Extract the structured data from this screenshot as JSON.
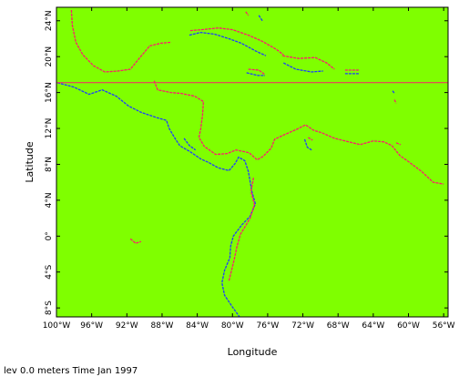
{
  "map": {
    "xlabel": "Longitude",
    "ylabel": "Latitude",
    "footer": "lev 0.0 meters Time Jan 1997",
    "colors": {
      "land_fill": "#7fff00",
      "coast_east": "#ff1a6e",
      "coast_west": "#1c3cff",
      "reference_line": "#ff1a6e",
      "frame": "#000000"
    },
    "xlim": [
      -100,
      -55.5
    ],
    "ylim": [
      -9,
      25.5
    ],
    "x_ticks": [
      {
        "value": -100,
        "label": "100°W"
      },
      {
        "value": -96,
        "label": "96°W"
      },
      {
        "value": -92,
        "label": "92°W"
      },
      {
        "value": -88,
        "label": "88°W"
      },
      {
        "value": -84,
        "label": "84°W"
      },
      {
        "value": -80,
        "label": "80°W"
      },
      {
        "value": -76,
        "label": "76°W"
      },
      {
        "value": -72,
        "label": "72°W"
      },
      {
        "value": -68,
        "label": "68°W"
      },
      {
        "value": -64,
        "label": "64°W"
      },
      {
        "value": -60,
        "label": "60°W"
      },
      {
        "value": -56,
        "label": "56°W"
      }
    ],
    "y_ticks": [
      {
        "value": 24,
        "label": "24°N"
      },
      {
        "value": 20,
        "label": "20°N"
      },
      {
        "value": 16,
        "label": "16°N"
      },
      {
        "value": 12,
        "label": "12°N"
      },
      {
        "value": 8,
        "label": "8°N"
      },
      {
        "value": 4,
        "label": "4°N"
      },
      {
        "value": 0,
        "label": "0°"
      },
      {
        "value": -4,
        "label": "4°S"
      },
      {
        "value": -8,
        "label": "8°S"
      }
    ],
    "reference_latitude": 17.1,
    "coast_segments": [
      {
        "side": "east",
        "points": [
          [
            -98.3,
            25.2
          ],
          [
            -98.2,
            23.5
          ],
          [
            -97.8,
            21.6
          ],
          [
            -97.0,
            20.2
          ],
          [
            -95.8,
            19.0
          ],
          [
            -94.5,
            18.3
          ],
          [
            -93.0,
            18.4
          ],
          [
            -91.6,
            18.6
          ],
          [
            -90.6,
            19.8
          ],
          [
            -89.4,
            21.2
          ],
          [
            -88.1,
            21.5
          ],
          [
            -87.0,
            21.6
          ]
        ]
      },
      {
        "side": "east",
        "points": [
          [
            -84.8,
            22.9
          ],
          [
            -83.5,
            23.0
          ],
          [
            -81.6,
            23.2
          ],
          [
            -80.0,
            23.0
          ],
          [
            -78.2,
            22.4
          ],
          [
            -76.6,
            21.7
          ],
          [
            -75.0,
            20.8
          ],
          [
            -74.2,
            20.2
          ]
        ]
      },
      {
        "side": "west",
        "points": [
          [
            -84.9,
            22.4
          ],
          [
            -83.6,
            22.7
          ],
          [
            -82.0,
            22.5
          ],
          [
            -80.4,
            22.0
          ],
          [
            -79.0,
            21.5
          ],
          [
            -77.3,
            20.6
          ],
          [
            -76.2,
            20.1
          ]
        ]
      },
      {
        "side": "east",
        "points": [
          [
            -74.3,
            20.1
          ],
          [
            -72.5,
            19.8
          ],
          [
            -70.6,
            19.9
          ],
          [
            -69.3,
            19.3
          ],
          [
            -68.4,
            18.6
          ]
        ]
      },
      {
        "side": "west",
        "points": [
          [
            -74.2,
            19.3
          ],
          [
            -72.8,
            18.6
          ],
          [
            -71.0,
            18.3
          ],
          [
            -69.7,
            18.4
          ]
        ]
      },
      {
        "side": "east",
        "points": [
          [
            -78.2,
            18.6
          ],
          [
            -77.0,
            18.5
          ],
          [
            -76.3,
            18.0
          ]
        ]
      },
      {
        "side": "west",
        "points": [
          [
            -78.4,
            18.2
          ],
          [
            -77.1,
            17.9
          ],
          [
            -76.3,
            17.9
          ]
        ]
      },
      {
        "side": "east",
        "points": [
          [
            -67.2,
            18.5
          ],
          [
            -65.6,
            18.5
          ]
        ]
      },
      {
        "side": "west",
        "points": [
          [
            -67.2,
            18.1
          ],
          [
            -65.6,
            18.1
          ]
        ]
      },
      {
        "side": "west",
        "points": [
          [
            -99.9,
            17.1
          ],
          [
            -98.0,
            16.6
          ],
          [
            -96.3,
            15.8
          ],
          [
            -94.8,
            16.3
          ],
          [
            -93.2,
            15.6
          ],
          [
            -91.8,
            14.5
          ],
          [
            -90.4,
            13.8
          ],
          [
            -88.6,
            13.2
          ],
          [
            -87.5,
            12.9
          ],
          [
            -87.2,
            12.0
          ],
          [
            -86.6,
            11.0
          ],
          [
            -86.0,
            10.1
          ],
          [
            -85.7,
            9.9
          ],
          [
            -84.8,
            9.4
          ],
          [
            -83.6,
            8.6
          ],
          [
            -82.7,
            8.2
          ],
          [
            -81.6,
            7.6
          ],
          [
            -80.4,
            7.3
          ],
          [
            -79.7,
            8.1
          ],
          [
            -79.3,
            8.8
          ],
          [
            -78.6,
            8.4
          ],
          [
            -78.2,
            7.2
          ],
          [
            -77.8,
            5.0
          ],
          [
            -77.4,
            3.6
          ],
          [
            -78.0,
            2.2
          ],
          [
            -78.9,
            1.3
          ],
          [
            -79.9,
            0.0
          ],
          [
            -80.2,
            -1.1
          ],
          [
            -80.3,
            -2.4
          ],
          [
            -80.9,
            -3.8
          ],
          [
            -81.2,
            -5.2
          ],
          [
            -80.9,
            -6.6
          ],
          [
            -80.0,
            -7.9
          ],
          [
            -79.2,
            -9.0
          ]
        ]
      },
      {
        "side": "east",
        "points": [
          [
            -88.9,
            17.3
          ],
          [
            -88.5,
            16.3
          ],
          [
            -87.0,
            16.0
          ],
          [
            -85.8,
            15.9
          ],
          [
            -84.3,
            15.6
          ],
          [
            -83.3,
            15.0
          ],
          [
            -83.4,
            13.5
          ],
          [
            -83.6,
            12.0
          ],
          [
            -83.8,
            11.0
          ],
          [
            -83.2,
            10.0
          ],
          [
            -81.9,
            9.1
          ],
          [
            -80.6,
            9.2
          ],
          [
            -79.6,
            9.6
          ],
          [
            -78.1,
            9.3
          ],
          [
            -77.2,
            8.5
          ],
          [
            -76.5,
            8.9
          ],
          [
            -75.6,
            9.8
          ],
          [
            -75.2,
            10.8
          ],
          [
            -74.1,
            11.3
          ],
          [
            -72.7,
            11.9
          ],
          [
            -71.7,
            12.4
          ],
          [
            -70.8,
            11.8
          ],
          [
            -69.8,
            11.5
          ],
          [
            -68.4,
            10.9
          ],
          [
            -67.2,
            10.6
          ],
          [
            -65.5,
            10.2
          ],
          [
            -64.0,
            10.6
          ],
          [
            -62.8,
            10.5
          ],
          [
            -61.9,
            10.1
          ],
          [
            -61.0,
            9.0
          ],
          [
            -60.0,
            8.3
          ],
          [
            -58.5,
            7.2
          ],
          [
            -57.2,
            6.0
          ],
          [
            -56.0,
            5.8
          ]
        ]
      },
      {
        "side": "east",
        "points": [
          [
            -77.6,
            6.5
          ],
          [
            -77.9,
            5.0
          ],
          [
            -77.5,
            3.5
          ],
          [
            -78.0,
            2.0
          ],
          [
            -78.6,
            1.0
          ],
          [
            -79.1,
            0.2
          ],
          [
            -79.5,
            -1.2
          ],
          [
            -79.8,
            -2.6
          ],
          [
            -80.1,
            -3.8
          ],
          [
            -80.4,
            -5.0
          ]
        ]
      },
      {
        "side": "west",
        "points": [
          [
            -85.5,
            10.9
          ],
          [
            -84.9,
            10.1
          ],
          [
            -84.2,
            9.6
          ]
        ]
      },
      {
        "side": "west",
        "points": [
          [
            -71.8,
            10.8
          ],
          [
            -71.5,
            9.9
          ],
          [
            -71.0,
            9.6
          ]
        ]
      },
      {
        "side": "east",
        "points": [
          [
            -71.4,
            11.0
          ],
          [
            -70.9,
            10.7
          ]
        ]
      },
      {
        "side": "east",
        "points": [
          [
            -91.6,
            -0.3
          ],
          [
            -91.0,
            -0.8
          ],
          [
            -90.4,
            -0.6
          ]
        ]
      },
      {
        "side": "east",
        "points": [
          [
            -61.6,
            15.2
          ],
          [
            -61.4,
            14.8
          ]
        ]
      },
      {
        "side": "west",
        "points": [
          [
            -61.8,
            16.2
          ],
          [
            -61.6,
            15.9
          ]
        ]
      },
      {
        "side": "east",
        "points": [
          [
            -61.4,
            10.4
          ],
          [
            -60.9,
            10.2
          ]
        ]
      },
      {
        "side": "east",
        "points": [
          [
            -78.5,
            25.0
          ],
          [
            -78.2,
            24.6
          ]
        ]
      },
      {
        "side": "west",
        "points": [
          [
            -77.0,
            24.6
          ],
          [
            -76.6,
            24.0
          ]
        ]
      }
    ]
  }
}
